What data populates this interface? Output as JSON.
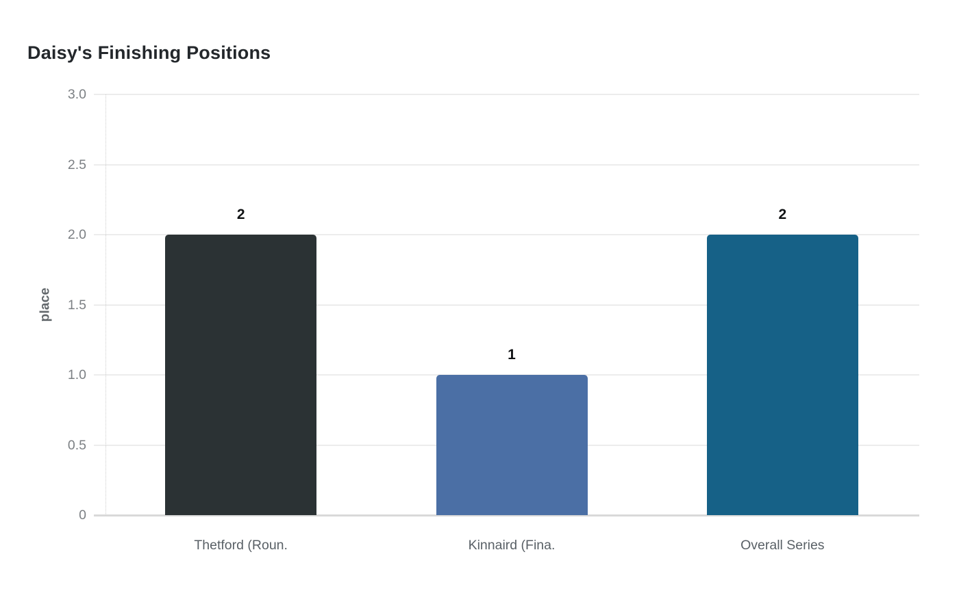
{
  "page": {
    "background": "#ffffff"
  },
  "chart_data": {
    "type": "bar",
    "title": "Daisy's Finishing Positions",
    "xlabel": "",
    "ylabel": "place",
    "categories": [
      "Thetford (Roun.",
      "Kinnaird (Fina.",
      "Overall Series"
    ],
    "values": [
      2,
      1,
      2
    ],
    "bar_value_labels": [
      "2",
      "1",
      "2"
    ],
    "bar_colors": [
      "#2b3234",
      "#4b6fa5",
      "#166187"
    ],
    "ylim": [
      0,
      3
    ],
    "yticks": [
      {
        "value": 0,
        "label": "0"
      },
      {
        "value": 0.5,
        "label": "0.5"
      },
      {
        "value": 1,
        "label": "1.0"
      },
      {
        "value": 1.5,
        "label": "1.5"
      },
      {
        "value": 2,
        "label": "2.0"
      },
      {
        "value": 2.5,
        "label": "2.5"
      },
      {
        "value": 3,
        "label": "3.0"
      }
    ],
    "grid": true,
    "legend": false,
    "colors": {
      "title_text": "#23272b",
      "gridline": "#ececec",
      "zero_line": "#d9d9d9",
      "axis_dotted_line": "#cccccc",
      "ytick_text": "#7b7f83",
      "y_axis_title_text": "#63686c",
      "xtick_text": "#596066",
      "bar_value_text": "#101214"
    }
  }
}
